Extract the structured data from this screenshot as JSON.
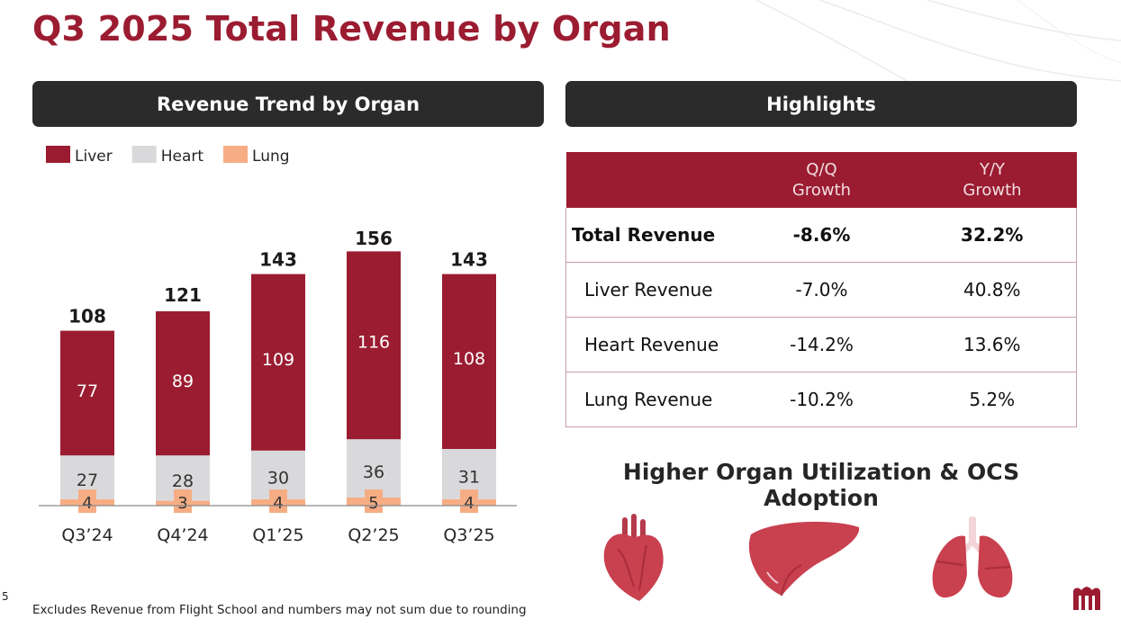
{
  "page": {
    "title": "Q3 2025 Total Revenue by Organ",
    "page_number": "5",
    "footnote": "Excludes Revenue from Flight School and numbers may not sum due to rounding"
  },
  "left_panel": {
    "header": "Revenue Trend by Organ"
  },
  "right_panel": {
    "header": "Highlights",
    "table": {
      "columns": [
        "",
        "Q/Q\nGrowth",
        "Y/Y\nGrowth"
      ],
      "rows": [
        {
          "label": "Total Revenue",
          "qq": "-8.6%",
          "yy": "32.2%"
        },
        {
          "label": "Liver Revenue",
          "qq": "-7.0%",
          "yy": "40.8%"
        },
        {
          "label": "Heart Revenue",
          "qq": "-14.2%",
          "yy": "13.6%"
        },
        {
          "label": "Lung Revenue",
          "qq": "-10.2%",
          "yy": "5.2%"
        }
      ]
    },
    "subheading": "Higher Organ Utilization & OCS Adoption",
    "icons": [
      "heart-organ-icon",
      "liver-organ-icon",
      "lungs-organ-icon"
    ]
  },
  "colors": {
    "liver": "#9b1c31",
    "heart": "#d9d9dc",
    "lung": "#f7ad84",
    "accent": "#9b1c31",
    "dark": "#2b2b2b"
  },
  "chart_data": {
    "type": "bar",
    "stacked": true,
    "categories": [
      "Q3’24",
      "Q4’24",
      "Q1’25",
      "Q2’25",
      "Q3’25"
    ],
    "series": [
      {
        "name": "Lung",
        "values": [
          4,
          3,
          4,
          5,
          4
        ]
      },
      {
        "name": "Heart",
        "values": [
          27,
          28,
          30,
          36,
          31
        ]
      },
      {
        "name": "Liver",
        "values": [
          77,
          89,
          109,
          116,
          108
        ]
      }
    ],
    "totals": [
      108,
      121,
      143,
      156,
      143
    ],
    "legend": [
      "Liver",
      "Heart",
      "Lung"
    ],
    "legend_position": "top-left",
    "ylim": [
      0,
      160
    ],
    "grid": false,
    "title": "Revenue Trend by Organ"
  }
}
